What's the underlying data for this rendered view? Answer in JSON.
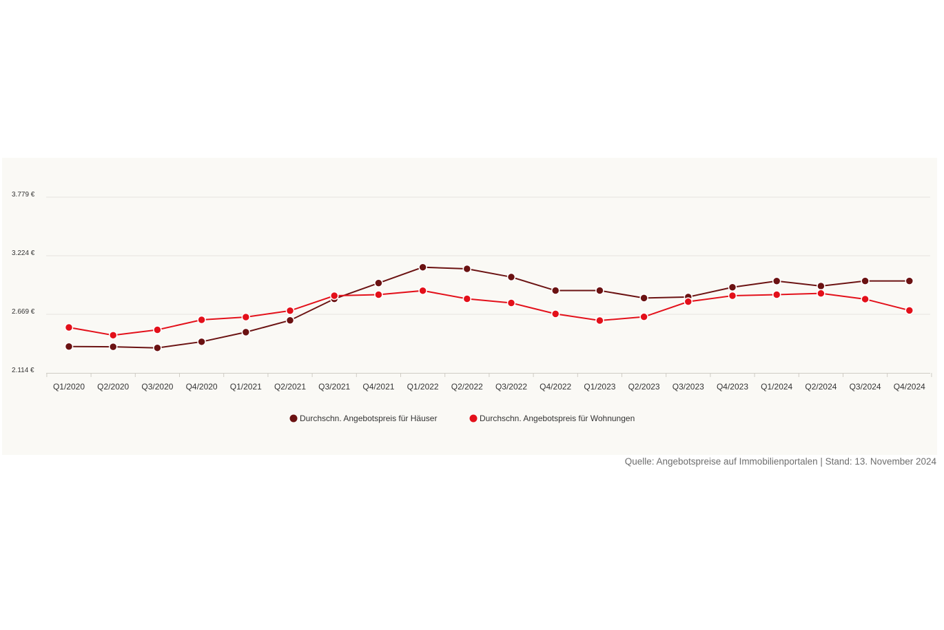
{
  "chart_data": {
    "type": "line",
    "categories": [
      "Q1/2020",
      "Q2/2020",
      "Q3/2020",
      "Q4/2020",
      "Q1/2021",
      "Q2/2021",
      "Q3/2021",
      "Q4/2021",
      "Q1/2022",
      "Q2/2022",
      "Q3/2022",
      "Q4/2022",
      "Q1/2023",
      "Q2/2023",
      "Q3/2023",
      "Q4/2023",
      "Q1/2024",
      "Q2/2024",
      "Q3/2024",
      "Q4/2024"
    ],
    "series": [
      {
        "name": "Durchschn. Angebotspreis für Häuser",
        "color": "#6b1212",
        "values": [
          2364,
          2361,
          2351,
          2409,
          2500,
          2612,
          2815,
          2965,
          3115,
          3100,
          3022,
          2894,
          2894,
          2823,
          2833,
          2925,
          2984,
          2937,
          2985,
          2985
        ]
      },
      {
        "name": "Durchschn. Angebotspreis für Wohnungen",
        "color": "#e3101a",
        "values": [
          2545,
          2471,
          2522,
          2617,
          2643,
          2703,
          2845,
          2855,
          2893,
          2816,
          2777,
          2673,
          2610,
          2645,
          2789,
          2845,
          2855,
          2867,
          2813,
          2706
        ]
      }
    ],
    "y_ticks": [
      "2.114 €",
      "2.669 €",
      "3.224 €",
      "3.779 €"
    ],
    "y_tick_values": [
      2114,
      2669,
      3224,
      3779
    ],
    "ylim": [
      2114,
      3779
    ],
    "grid": true,
    "legend": "bottom-center",
    "title": "",
    "xlabel": "",
    "ylabel": ""
  },
  "source_note": "Quelle: Angebotspreise auf Immobilienportalen | Stand: 13. November 2024"
}
